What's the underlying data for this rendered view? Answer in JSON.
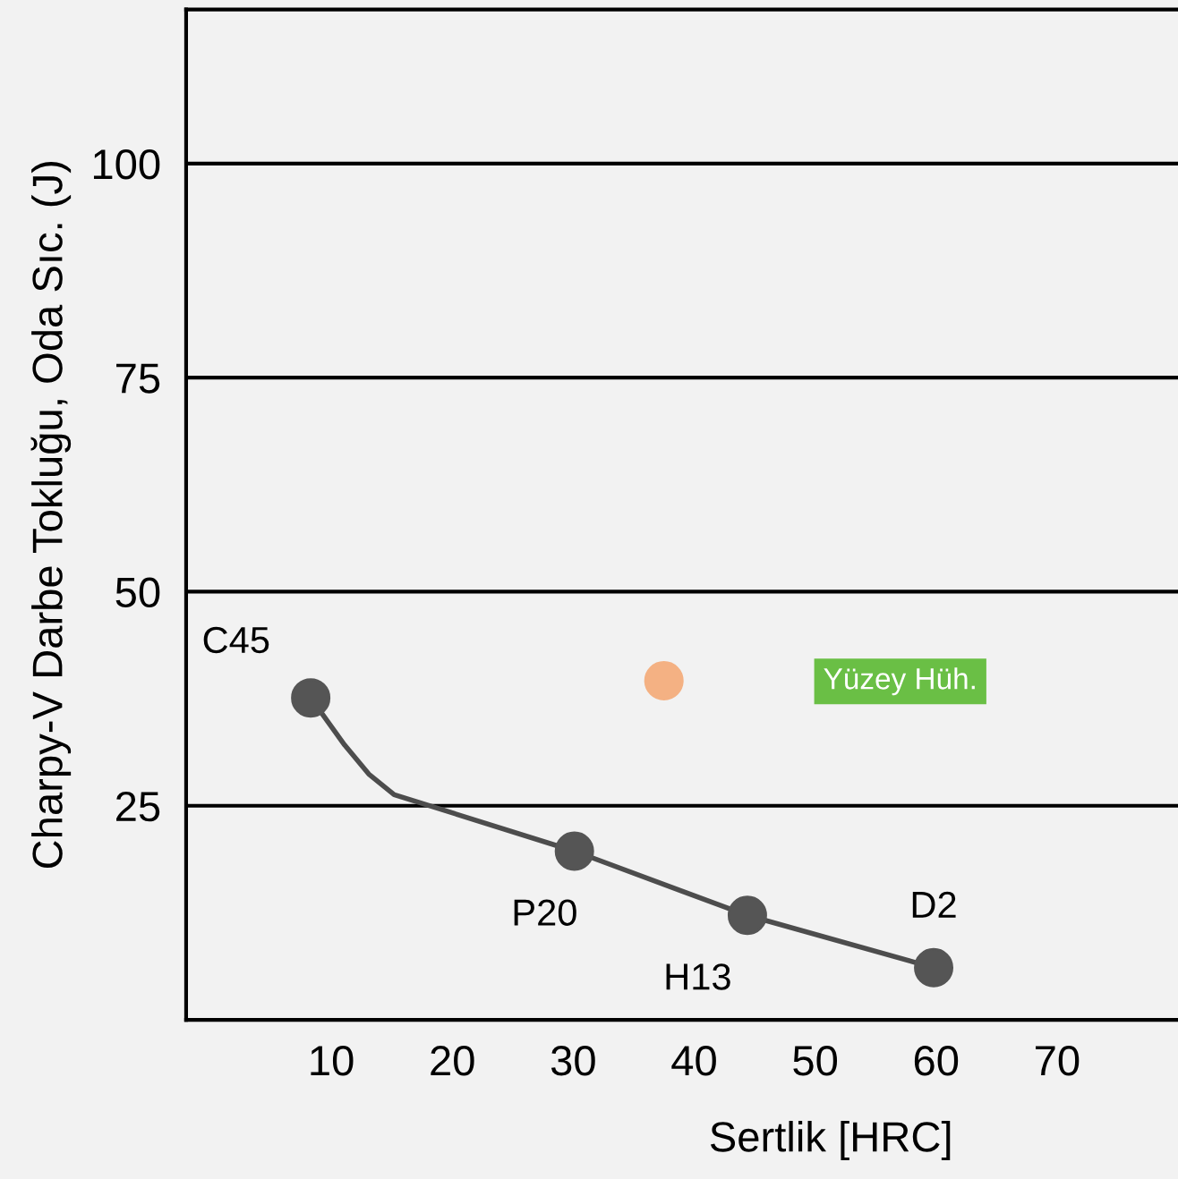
{
  "chart_data": {
    "type": "line",
    "xlabel": "Sertlik [HRC]",
    "ylabel": "Charpy-V Darbe Tokluğu, Oda Sıc. (J)",
    "xlim": [
      -2,
      80
    ],
    "xticks": [
      10,
      20,
      30,
      40,
      50,
      60,
      70
    ],
    "ylim": [
      0,
      118
    ],
    "yticks": [
      25,
      50,
      75,
      100
    ],
    "grid": "y",
    "legend": false,
    "series": [
      {
        "x": [
          8.3,
          11.1,
          13.1,
          15.2,
          30.1,
          44.4,
          59.8
        ],
        "values": [
          37.6,
          32.1,
          28.7,
          26.3,
          19.7,
          12.2,
          6.1
        ],
        "color": "#4d4d4d",
        "marker": "none"
      },
      {
        "type": "scatter",
        "x": [
          8.3,
          30.1,
          44.4,
          59.8
        ],
        "values": [
          37.6,
          19.7,
          12.2,
          6.1
        ],
        "color": "#555555",
        "marker": "circle"
      },
      {
        "type": "scatter",
        "x": [
          37.5
        ],
        "values": [
          39.6
        ],
        "color": "#f4b183",
        "marker": "circle"
      }
    ],
    "annotations": [
      {
        "text": "C45",
        "x": 8.3,
        "y": 37.6
      },
      {
        "text": "P20",
        "x": 30.1,
        "y": 19.7
      },
      {
        "text": "H13",
        "x": 44.4,
        "y": 12.2
      },
      {
        "text": "D2",
        "x": 59.8,
        "y": 6.1
      },
      "Yüzey Hüh."
    ]
  }
}
